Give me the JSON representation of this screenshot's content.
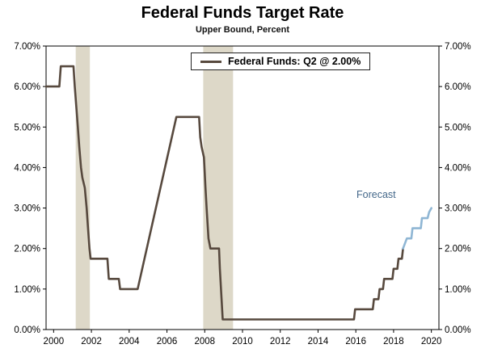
{
  "chart_data": {
    "type": "line",
    "title": "Federal Funds Target Rate",
    "subtitle": "Upper Bound, Percent",
    "legend_label": "Federal Funds: Q2 @ 2.00%",
    "annotation": "Forecast",
    "xlim": [
      1999.6,
      2020.4
    ],
    "ylim": [
      0,
      7
    ],
    "xticks": [
      2000,
      2002,
      2004,
      2006,
      2008,
      2010,
      2012,
      2014,
      2016,
      2018,
      2020
    ],
    "yticks": [
      0,
      1,
      2,
      3,
      4,
      5,
      6,
      7
    ],
    "ytick_labels": [
      "0.00%",
      "1.00%",
      "2.00%",
      "3.00%",
      "4.00%",
      "5.00%",
      "6.00%",
      "7.00%"
    ],
    "grid": "off",
    "legend_position": "top-center-inside",
    "recession_bands": [
      [
        2001.17,
        2001.92
      ],
      [
        2007.92,
        2009.5
      ]
    ],
    "colors": {
      "history_line": "#57493e",
      "forecast_line": "#8fb6d4",
      "recession_band": "#ddd8c8",
      "annotation_text": "#44688a",
      "axis": "#000000"
    },
    "series": [
      {
        "name": "Federal Funds (history)",
        "color_key": "history_line",
        "points": [
          [
            1999.6,
            6.0
          ],
          [
            2000.3,
            6.0
          ],
          [
            2000.38,
            6.5
          ],
          [
            2001.05,
            6.5
          ],
          [
            2001.12,
            6.0
          ],
          [
            2001.2,
            5.5
          ],
          [
            2001.28,
            5.0
          ],
          [
            2001.36,
            4.5
          ],
          [
            2001.45,
            4.0
          ],
          [
            2001.52,
            3.75
          ],
          [
            2001.65,
            3.5
          ],
          [
            2001.75,
            3.0
          ],
          [
            2001.82,
            2.5
          ],
          [
            2001.9,
            2.0
          ],
          [
            2001.96,
            1.75
          ],
          [
            2002.85,
            1.75
          ],
          [
            2002.92,
            1.25
          ],
          [
            2003.45,
            1.25
          ],
          [
            2003.52,
            1.0
          ],
          [
            2004.45,
            1.0
          ],
          [
            2006.5,
            5.25
          ],
          [
            2007.7,
            5.25
          ],
          [
            2007.76,
            4.75
          ],
          [
            2007.84,
            4.5
          ],
          [
            2007.96,
            4.25
          ],
          [
            2008.04,
            3.5
          ],
          [
            2008.1,
            3.0
          ],
          [
            2008.2,
            2.25
          ],
          [
            2008.3,
            2.0
          ],
          [
            2008.76,
            2.0
          ],
          [
            2008.8,
            1.5
          ],
          [
            2008.86,
            1.0
          ],
          [
            2008.95,
            0.25
          ],
          [
            2015.9,
            0.25
          ],
          [
            2015.96,
            0.5
          ],
          [
            2016.9,
            0.5
          ],
          [
            2016.96,
            0.75
          ],
          [
            2017.2,
            0.75
          ],
          [
            2017.26,
            1.0
          ],
          [
            2017.44,
            1.0
          ],
          [
            2017.5,
            1.25
          ],
          [
            2017.94,
            1.25
          ],
          [
            2018.0,
            1.5
          ],
          [
            2018.2,
            1.5
          ],
          [
            2018.26,
            1.75
          ],
          [
            2018.44,
            1.75
          ],
          [
            2018.5,
            2.0
          ]
        ]
      },
      {
        "name": "Federal Funds (forecast)",
        "color_key": "forecast_line",
        "points": [
          [
            2018.5,
            2.0
          ],
          [
            2018.7,
            2.25
          ],
          [
            2018.94,
            2.25
          ],
          [
            2019.0,
            2.5
          ],
          [
            2019.44,
            2.5
          ],
          [
            2019.5,
            2.75
          ],
          [
            2019.8,
            2.75
          ],
          [
            2019.88,
            2.9
          ],
          [
            2020.0,
            3.0
          ]
        ]
      }
    ]
  }
}
